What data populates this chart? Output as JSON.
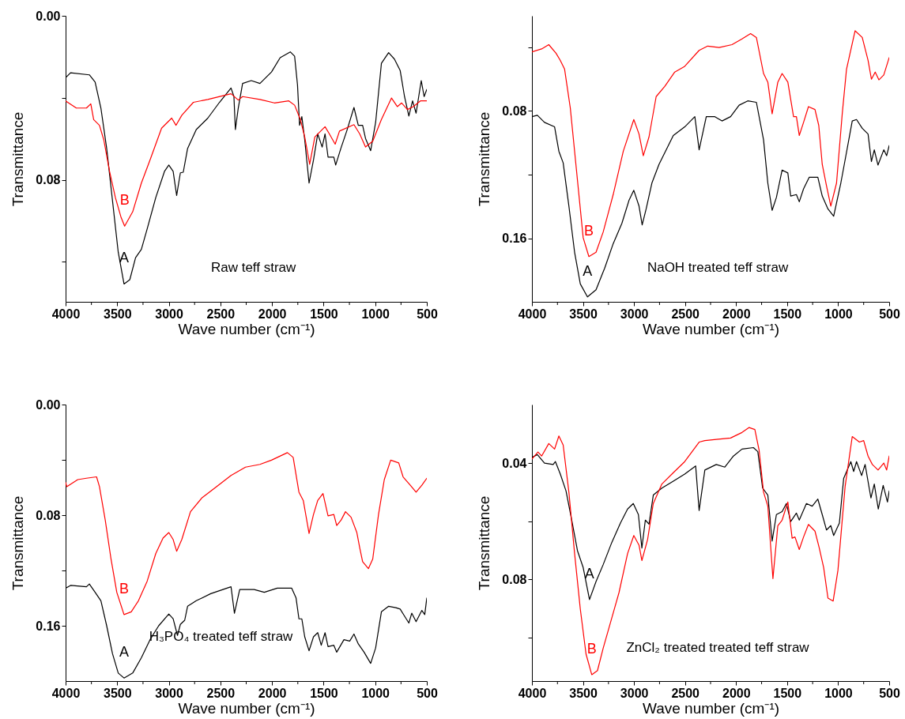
{
  "chart_data": [
    {
      "type": "line",
      "xlabel": "Wave number (cm⁻¹)",
      "ylabel": "Transmittance",
      "annotations": [
        "Raw teff straw"
      ],
      "legend": false,
      "xlim": [
        4000,
        500
      ],
      "xticks": [
        4000,
        {
          "value": 3750,
          "label": null
        },
        3500,
        {
          "value": 3250,
          "label": null
        },
        3000,
        {
          "value": 2750,
          "label": null
        },
        2500,
        {
          "value": 2250,
          "label": null
        },
        2000,
        {
          "value": 1750,
          "label": null
        },
        1500,
        {
          "value": 1250,
          "label": null
        },
        1000,
        {
          "value": 750,
          "label": null
        },
        500
      ],
      "ylim": [
        0.1395,
        0
      ],
      "yticks": [
        {
          "value": 0,
          "label": "0.00"
        },
        {
          "value": 0.04,
          "label": null
        },
        0.08,
        {
          "value": 0.12,
          "label": null
        }
      ],
      "series": [
        {
          "name": "A",
          "color": "#000000",
          "x": [
            4000,
            3952,
            3770,
            3714,
            3658,
            3602,
            3546,
            3490,
            3434,
            3378,
            3322,
            3266,
            3210,
            3126,
            3042,
            3000,
            2958,
            2924,
            2888,
            2860,
            2818,
            2734,
            2622,
            2509,
            2397,
            2369,
            2355,
            2327,
            2285,
            2201,
            2117,
            2005,
            1921,
            1823,
            1781,
            1753,
            1733,
            1711,
            1683,
            1641,
            1598,
            1557,
            1514,
            1486,
            1457,
            1401,
            1383,
            1333,
            1276,
            1206,
            1164,
            1122,
            1094,
            1044,
            996,
            940,
            870,
            814,
            758,
            716,
            674,
            638,
            604,
            554,
            526,
            500
          ],
          "values": [
            0.0302,
            0.0278,
            0.0288,
            0.0323,
            0.045,
            0.0647,
            0.09,
            0.1153,
            0.1308,
            0.1287,
            0.118,
            0.1139,
            0.104,
            0.0886,
            0.0759,
            0.0728,
            0.0759,
            0.0876,
            0.0766,
            0.0763,
            0.0647,
            0.0555,
            0.0499,
            0.0422,
            0.0352,
            0.0394,
            0.0555,
            0.045,
            0.033,
            0.0316,
            0.033,
            0.0274,
            0.0204,
            0.0176,
            0.0197,
            0.0337,
            0.0534,
            0.0492,
            0.0605,
            0.0816,
            0.0703,
            0.0576,
            0.064,
            0.0576,
            0.0689,
            0.0689,
            0.0728,
            0.0647,
            0.0562,
            0.0447,
            0.0534,
            0.0534,
            0.0598,
            0.0658,
            0.052,
            0.0232,
            0.018,
            0.0211,
            0.0267,
            0.0394,
            0.0489,
            0.0415,
            0.0475,
            0.0316,
            0.0394,
            0.0359
          ]
        },
        {
          "name": "B",
          "color": "#ff0000",
          "x": [
            4000,
            3896,
            3798,
            3756,
            3728,
            3672,
            3630,
            3574,
            3518,
            3462,
            3428,
            3350,
            3266,
            3182,
            3070,
            2972,
            2930,
            2874,
            2762,
            2622,
            2397,
            2327,
            2285,
            2117,
            1977,
            1837,
            1781,
            1725,
            1683,
            1635,
            1585,
            1486,
            1444,
            1388,
            1346,
            1206,
            1150,
            1094,
            1024,
            940,
            842,
            786,
            744,
            688,
            632,
            562,
            500
          ],
          "values": [
            0.0415,
            0.045,
            0.045,
            0.0429,
            0.0506,
            0.0534,
            0.0605,
            0.0759,
            0.0886,
            0.0984,
            0.1026,
            0.0956,
            0.0816,
            0.0703,
            0.0548,
            0.0499,
            0.0534,
            0.0485,
            0.0422,
            0.0408,
            0.038,
            0.0411,
            0.0394,
            0.0408,
            0.0425,
            0.0415,
            0.0436,
            0.0506,
            0.0591,
            0.0724,
            0.0591,
            0.0541,
            0.0576,
            0.0626,
            0.0562,
            0.0531,
            0.0576,
            0.064,
            0.0612,
            0.0506,
            0.0401,
            0.0443,
            0.0425,
            0.0457,
            0.0443,
            0.0415,
            0.0415
          ]
        }
      ]
    },
    {
      "type": "line",
      "xlabel": "Wave number (cm⁻¹)",
      "ylabel": "Transmittance",
      "annotations": [
        "NaOH treated teff straw"
      ],
      "legend": false,
      "xlim": [
        4000,
        500
      ],
      "xticks": [
        4000,
        {
          "value": 3750,
          "label": null
        },
        3500,
        {
          "value": 3250,
          "label": null
        },
        3000,
        {
          "value": 2750,
          "label": null
        },
        2500,
        {
          "value": 2250,
          "label": null
        },
        2000,
        {
          "value": 1750,
          "label": null
        },
        1500,
        {
          "value": 1250,
          "label": null
        },
        1000,
        {
          "value": 750,
          "label": null
        },
        500
      ],
      "ylim": [
        0.1998,
        0.0203
      ],
      "yticks": [
        {
          "value": 0.04,
          "label": null
        },
        0.08,
        {
          "value": 0.12,
          "label": null
        },
        0.16
      ],
      "series": [
        {
          "name": "A",
          "color": "#000000",
          "x": [
            4000,
            3947,
            3877,
            3778,
            3736,
            3694,
            3638,
            3582,
            3526,
            3456,
            3372,
            3287,
            3204,
            3119,
            3049,
            3002,
            2951,
            2920,
            2881,
            2825,
            2755,
            2615,
            2503,
            2404,
            2362,
            2292,
            2208,
            2138,
            2054,
            1970,
            1886,
            1801,
            1731,
            1689,
            1647,
            1605,
            1549,
            1493,
            1465,
            1409,
            1381,
            1339,
            1283,
            1199,
            1156,
            1100,
            1044,
            974,
            932,
            862,
            820,
            764,
            707,
            674,
            646,
            610,
            553,
            525,
            500
          ],
          "values": [
            0.0836,
            0.0827,
            0.0872,
            0.09,
            0.1053,
            0.1126,
            0.1397,
            0.1687,
            0.1886,
            0.1967,
            0.1922,
            0.1786,
            0.1633,
            0.1506,
            0.1361,
            0.1298,
            0.1397,
            0.1515,
            0.1415,
            0.1253,
            0.1135,
            0.0954,
            0.09,
            0.0836,
            0.1044,
            0.0836,
            0.0836,
            0.0863,
            0.0836,
            0.0764,
            0.0737,
            0.0746,
            0.0981,
            0.1253,
            0.1424,
            0.1343,
            0.1171,
            0.1189,
            0.1334,
            0.1325,
            0.137,
            0.1289,
            0.1216,
            0.1216,
            0.1334,
            0.1415,
            0.1461,
            0.1253,
            0.1108,
            0.0863,
            0.0854,
            0.0909,
            0.0945,
            0.1117,
            0.1044,
            0.114,
            0.1044,
            0.1081,
            0.1017
          ]
        },
        {
          "name": "B",
          "color": "#ff0000",
          "x": [
            4000,
            3905,
            3835,
            3764,
            3722,
            3680,
            3624,
            3568,
            3498,
            3442,
            3372,
            3302,
            3204,
            3105,
            3002,
            2951,
            2909,
            2853,
            2783,
            2699,
            2601,
            2503,
            2362,
            2278,
            2166,
            2040,
            1942,
            1858,
            1801,
            1731,
            1689,
            1647,
            1591,
            1549,
            1493,
            1437,
            1409,
            1381,
            1339,
            1291,
            1227,
            1190,
            1156,
            1114,
            1072,
            1016,
            960,
            918,
            834,
            764,
            707,
            674,
            637,
            601,
            553,
            500
          ],
          "values": [
            0.0429,
            0.0411,
            0.0384,
            0.0438,
            0.0483,
            0.0538,
            0.0782,
            0.1144,
            0.1596,
            0.1714,
            0.1687,
            0.156,
            0.1325,
            0.1053,
            0.0854,
            0.0945,
            0.1081,
            0.0963,
            0.071,
            0.0646,
            0.0556,
            0.052,
            0.042,
            0.0393,
            0.0402,
            0.0384,
            0.0348,
            0.0315,
            0.0339,
            0.0565,
            0.0619,
            0.0818,
            0.0619,
            0.0565,
            0.0619,
            0.0836,
            0.0836,
            0.0954,
            0.0872,
            0.0773,
            0.0791,
            0.0891,
            0.1135,
            0.1271,
            0.1397,
            0.1253,
            0.0818,
            0.0538,
            0.0297,
            0.0339,
            0.0483,
            0.0601,
            0.0556,
            0.0605,
            0.0574,
            0.0465
          ]
        }
      ]
    },
    {
      "type": "line",
      "xlabel": "Wave number (cm⁻¹)",
      "ylabel": "Transmittance",
      "annotations": [
        "H₃PO₄ treated teff straw"
      ],
      "legend": false,
      "xlim": [
        4000,
        500
      ],
      "xticks": [
        4000,
        {
          "value": 3750,
          "label": null
        },
        3500,
        {
          "value": 3250,
          "label": null
        },
        3000,
        {
          "value": 2750,
          "label": null
        },
        2500,
        {
          "value": 2250,
          "label": null
        },
        2000,
        {
          "value": 1750,
          "label": null
        },
        1500,
        {
          "value": 1250,
          "label": null
        },
        1000,
        {
          "value": 750,
          "label": null
        },
        500
      ],
      "ylim": [
        0.2,
        0
      ],
      "yticks": [
        {
          "value": 0,
          "label": "0.00"
        },
        {
          "value": 0.04,
          "label": null
        },
        0.08,
        {
          "value": 0.12,
          "label": null
        },
        0.16
      ],
      "series": [
        {
          "name": "A",
          "color": "#000000",
          "x": [
            4000,
            3952,
            3798,
            3770,
            3714,
            3658,
            3602,
            3546,
            3490,
            3434,
            3350,
            3266,
            3182,
            3098,
            3000,
            2958,
            2916,
            2888,
            2846,
            2818,
            2734,
            2594,
            2397,
            2364,
            2313,
            2173,
            2075,
            1949,
            1809,
            1767,
            1739,
            1711,
            1683,
            1641,
            1598,
            1557,
            1523,
            1486,
            1457,
            1401,
            1373,
            1303,
            1247,
            1206,
            1164,
            1108,
            1044,
            996,
            940,
            870,
            800,
            758,
            716,
            674,
            646,
            604,
            548,
            520,
            500
          ],
          "values": [
            0.1328,
            0.1308,
            0.1318,
            0.1298,
            0.1358,
            0.1419,
            0.16,
            0.1801,
            0.1942,
            0.1978,
            0.1942,
            0.1831,
            0.1701,
            0.16,
            0.1515,
            0.1549,
            0.167,
            0.159,
            0.156,
            0.1459,
            0.1419,
            0.1368,
            0.1318,
            0.1509,
            0.1338,
            0.1338,
            0.1358,
            0.1328,
            0.1328,
            0.1399,
            0.155,
            0.155,
            0.168,
            0.1781,
            0.168,
            0.165,
            0.1741,
            0.165,
            0.1751,
            0.1741,
            0.1791,
            0.1701,
            0.1711,
            0.166,
            0.1731,
            0.1791,
            0.1872,
            0.1761,
            0.1499,
            0.1459,
            0.1469,
            0.1479,
            0.153,
            0.158,
            0.1509,
            0.157,
            0.1489,
            0.1519,
            0.1399
          ]
        },
        {
          "name": "B",
          "color": "#ff0000",
          "x": [
            4000,
            3989,
            3882,
            3798,
            3700,
            3672,
            3616,
            3560,
            3504,
            3434,
            3364,
            3294,
            3210,
            3126,
            3056,
            3000,
            2958,
            2924,
            2874,
            2790,
            2678,
            2538,
            2397,
            2257,
            2117,
            2005,
            1851,
            1795,
            1739,
            1697,
            1641,
            1598,
            1557,
            1506,
            1457,
            1401,
            1373,
            1330,
            1288,
            1234,
            1178,
            1150,
            1122,
            1066,
            1024,
            968,
            912,
            850,
            772,
            730,
            660,
            604,
            548,
            500
          ],
          "values": [
            0.0563,
            0.0594,
            0.0543,
            0.0533,
            0.0523,
            0.0594,
            0.0835,
            0.1117,
            0.1358,
            0.1519,
            0.1499,
            0.1419,
            0.1278,
            0.1077,
            0.0966,
            0.0926,
            0.0976,
            0.1061,
            0.0976,
            0.0775,
            0.0674,
            0.0594,
            0.0513,
            0.0453,
            0.0433,
            0.0402,
            0.0348,
            0.0382,
            0.0634,
            0.0694,
            0.0932,
            0.0795,
            0.0694,
            0.0644,
            0.0805,
            0.0795,
            0.0875,
            0.0835,
            0.0775,
            0.0815,
            0.0926,
            0.1036,
            0.1137,
            0.1187,
            0.1117,
            0.0795,
            0.0543,
            0.0402,
            0.0422,
            0.0523,
            0.0584,
            0.0634,
            0.0584,
            0.0533
          ]
        }
      ]
    },
    {
      "type": "line",
      "xlabel": "Wave number (cm⁻¹)",
      "ylabel": "Transmittance",
      "annotations": [
        "ZnCl₂ treated treated teff straw"
      ],
      "legend": false,
      "xlim": [
        4000,
        500
      ],
      "xticks": [
        4000,
        {
          "value": 3750,
          "label": null
        },
        3500,
        {
          "value": 3250,
          "label": null
        },
        3000,
        {
          "value": 2750,
          "label": null
        },
        2500,
        {
          "value": 2250,
          "label": null
        },
        2000,
        {
          "value": 1750,
          "label": null
        },
        1500,
        {
          "value": 1250,
          "label": null
        },
        1000,
        {
          "value": 750,
          "label": null
        },
        500
      ],
      "ylim": [
        0.1149,
        0.0199
      ],
      "yticks": [
        0.04,
        {
          "value": 0.06,
          "label": null
        },
        0.08,
        {
          "value": 0.1,
          "label": null
        }
      ],
      "series": [
        {
          "name": "A",
          "color": "#000000",
          "x": [
            4000,
            3947,
            3877,
            3792,
            3770,
            3722,
            3666,
            3610,
            3554,
            3498,
            3436,
            3372,
            3302,
            3218,
            3133,
            3063,
            3007,
            2957,
            2923,
            2889,
            2853,
            2811,
            2727,
            2615,
            2503,
            2396,
            2362,
            2306,
            2194,
            2110,
            2026,
            1942,
            1830,
            1787,
            1740,
            1689,
            1647,
            1605,
            1549,
            1507,
            1465,
            1409,
            1381,
            1311,
            1254,
            1199,
            1156,
            1114,
            1072,
            1044,
            988,
            946,
            876,
            848,
            820,
            770,
            736,
            679,
            646,
            607,
            559,
            517,
            500
          ],
          "values": [
            0.0381,
            0.0371,
            0.04,
            0.0405,
            0.0395,
            0.0438,
            0.0496,
            0.0596,
            0.0701,
            0.0759,
            0.0869,
            0.0807,
            0.0749,
            0.0673,
            0.0606,
            0.0558,
            0.0539,
            0.0577,
            0.0692,
            0.0596,
            0.061,
            0.051,
            0.0486,
            0.0462,
            0.0438,
            0.041,
            0.0563,
            0.0424,
            0.0405,
            0.0414,
            0.0376,
            0.0352,
            0.0347,
            0.0361,
            0.0486,
            0.051,
            0.0668,
            0.0577,
            0.0567,
            0.0539,
            0.0601,
            0.0572,
            0.0596,
            0.0539,
            0.0548,
            0.0524,
            0.0577,
            0.063,
            0.0615,
            0.0649,
            0.0606,
            0.0453,
            0.0395,
            0.0429,
            0.0395,
            0.0443,
            0.0405,
            0.052,
            0.0472,
            0.0558,
            0.0477,
            0.0534,
            0.0496
          ]
        },
        {
          "name": "B",
          "color": "#ff0000",
          "x": [
            4000,
            3941,
            3905,
            3835,
            3778,
            3736,
            3694,
            3638,
            3582,
            3526,
            3470,
            3414,
            3358,
            3302,
            3232,
            3147,
            3063,
            3002,
            2951,
            2923,
            2867,
            2811,
            2727,
            2615,
            2503,
            2362,
            2306,
            2194,
            2054,
            1942,
            1872,
            1816,
            1774,
            1731,
            1689,
            1639,
            1591,
            1549,
            1493,
            1451,
            1423,
            1381,
            1339,
            1291,
            1227,
            1185,
            1142,
            1100,
            1049,
            1002,
            932,
            862,
            792,
            750,
            707,
            665,
            609,
            553,
            525,
            500
          ],
          "values": [
            0.0386,
            0.0362,
            0.0376,
            0.0333,
            0.0352,
            0.0307,
            0.0338,
            0.05,
            0.0711,
            0.0902,
            0.1056,
            0.1127,
            0.1113,
            0.1036,
            0.095,
            0.0845,
            0.0711,
            0.0649,
            0.0682,
            0.0735,
            0.0663,
            0.0539,
            0.0472,
            0.0433,
            0.0395,
            0.0328,
            0.0323,
            0.0319,
            0.0314,
            0.0295,
            0.0278,
            0.0285,
            0.0357,
            0.05,
            0.0548,
            0.0797,
            0.0615,
            0.0596,
            0.0534,
            0.0658,
            0.0654,
            0.0697,
            0.0654,
            0.0611,
            0.0634,
            0.0692,
            0.0759,
            0.0864,
            0.0874,
            0.0768,
            0.0481,
            0.0309,
            0.0328,
            0.0323,
            0.0376,
            0.0405,
            0.0424,
            0.04,
            0.0424,
            0.0376
          ]
        }
      ]
    }
  ]
}
